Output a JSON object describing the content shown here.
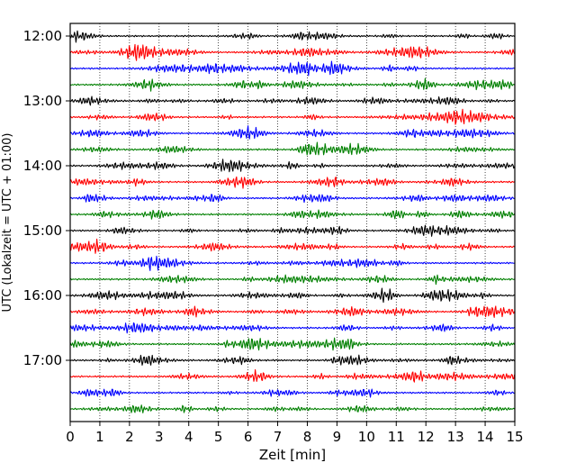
{
  "chart_data": {
    "type": "line",
    "title": "",
    "xlabel": "Zeit  [min]",
    "ylabel": "UTC (Lokalzeit = UTC + 01:00)",
    "xlim": [
      0,
      15
    ],
    "x_ticks": [
      "0",
      "1",
      "2",
      "3",
      "4",
      "5",
      "6",
      "7",
      "8",
      "9",
      "10",
      "11",
      "12",
      "13",
      "14",
      "15"
    ],
    "y_tick_labels": [
      "12:00",
      "13:00",
      "14:00",
      "15:00",
      "16:00",
      "17:00"
    ],
    "grid": "vertical dotted",
    "trace_interval_minutes": 15,
    "traces": [
      {
        "start": "12:00",
        "color": "#000000"
      },
      {
        "start": "12:15",
        "color": "#ff0000"
      },
      {
        "start": "12:30",
        "color": "#0000ff"
      },
      {
        "start": "12:45",
        "color": "#008000"
      },
      {
        "start": "13:00",
        "color": "#000000"
      },
      {
        "start": "13:15",
        "color": "#ff0000"
      },
      {
        "start": "13:30",
        "color": "#0000ff"
      },
      {
        "start": "13:45",
        "color": "#008000"
      },
      {
        "start": "14:00",
        "color": "#000000"
      },
      {
        "start": "14:15",
        "color": "#ff0000"
      },
      {
        "start": "14:30",
        "color": "#0000ff"
      },
      {
        "start": "14:45",
        "color": "#008000"
      },
      {
        "start": "15:00",
        "color": "#000000"
      },
      {
        "start": "15:15",
        "color": "#ff0000"
      },
      {
        "start": "15:30",
        "color": "#0000ff"
      },
      {
        "start": "15:45",
        "color": "#008000"
      },
      {
        "start": "16:00",
        "color": "#000000"
      },
      {
        "start": "16:15",
        "color": "#ff0000"
      },
      {
        "start": "16:30",
        "color": "#0000ff"
      },
      {
        "start": "16:45",
        "color": "#008000"
      },
      {
        "start": "17:00",
        "color": "#000000"
      },
      {
        "start": "17:15",
        "color": "#ff0000"
      },
      {
        "start": "17:30",
        "color": "#0000ff"
      },
      {
        "start": "17:45",
        "color": "#008000"
      }
    ]
  }
}
